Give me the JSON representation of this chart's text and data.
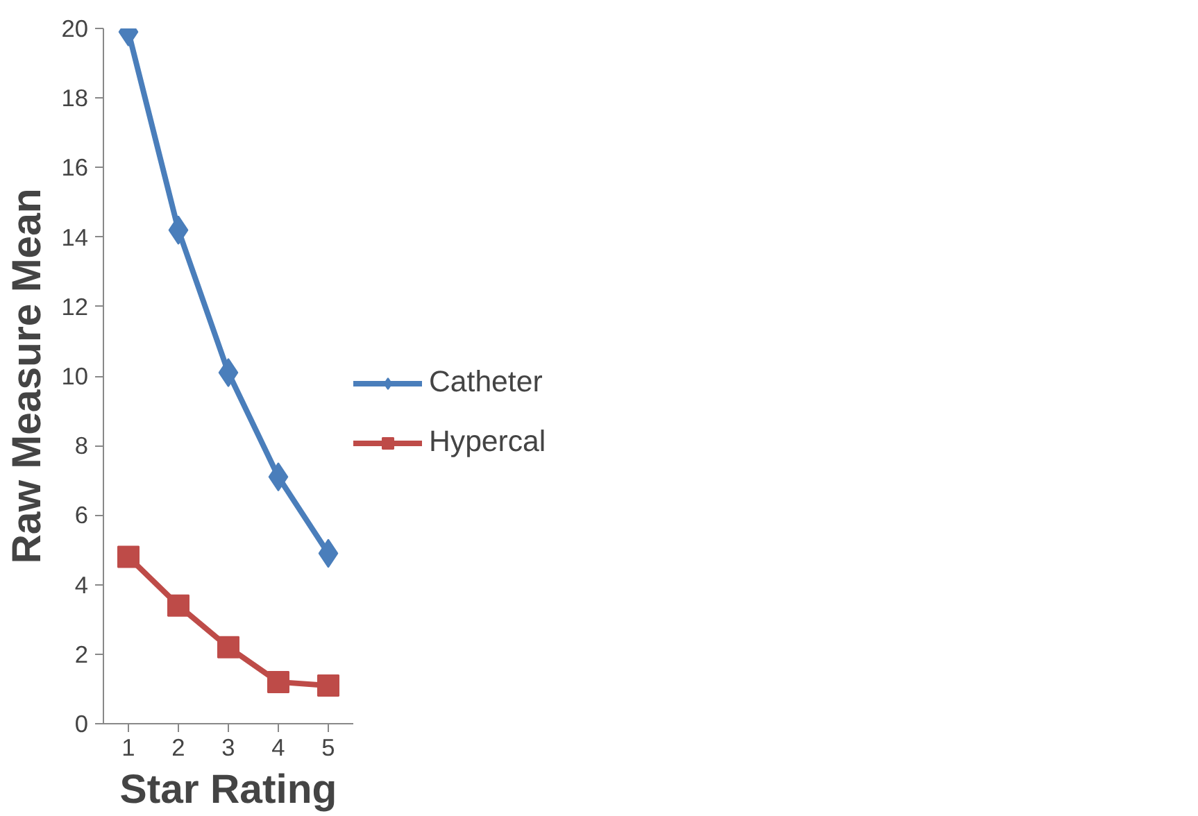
{
  "chart_data": {
    "type": "line",
    "xlabel": "Star Rating",
    "ylabel": "Raw Measure Mean",
    "categories": [
      "1",
      "2",
      "3",
      "4",
      "5"
    ],
    "ylim": [
      0,
      20
    ],
    "yticks": [
      0,
      2,
      4,
      6,
      8,
      10,
      12,
      14,
      16,
      18,
      20
    ],
    "grid": false,
    "legend": "right",
    "series": [
      {
        "name": "Catheter",
        "color": "#4a7ebb",
        "marker": "diamond",
        "values": [
          19.9,
          14.2,
          10.1,
          7.1,
          4.9
        ]
      },
      {
        "name": "Hypercal",
        "color": "#be4b48",
        "marker": "square",
        "values": [
          4.8,
          3.4,
          2.2,
          1.2,
          1.1
        ]
      }
    ]
  }
}
